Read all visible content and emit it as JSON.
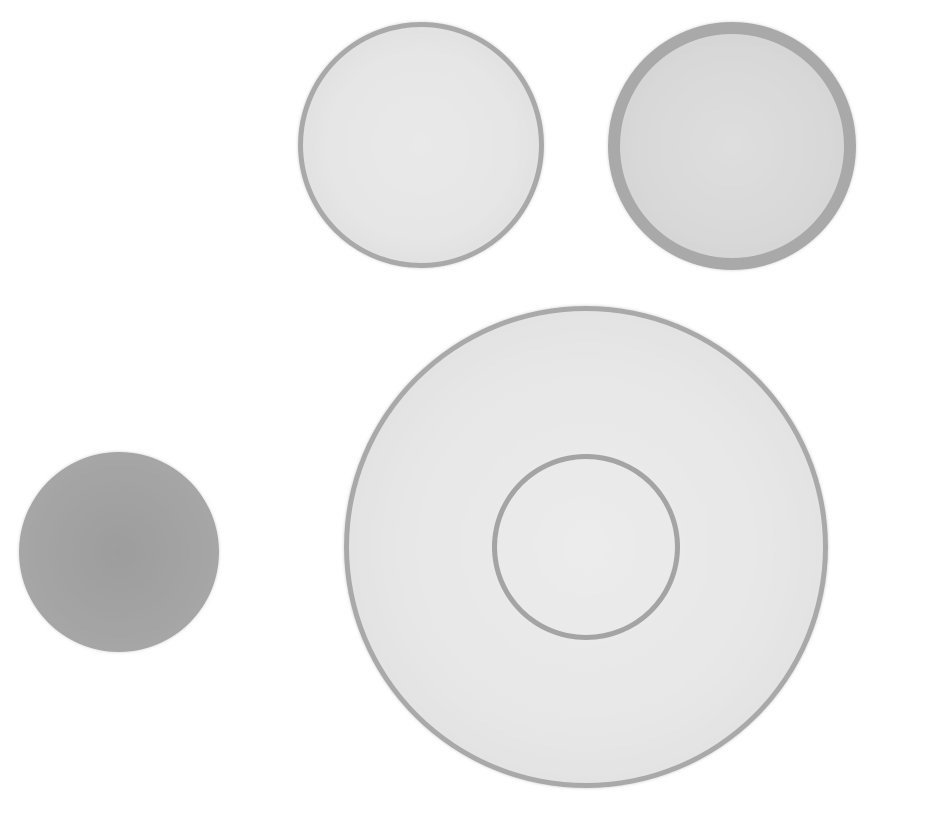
{
  "canvas": {
    "background": "#ffffff"
  },
  "shapes": [
    {
      "name": "circle-top-left",
      "kind": "ring",
      "fill": "#e7e7e7",
      "stroke": "#a9a9a9"
    },
    {
      "name": "circle-top-right",
      "kind": "thick-ring",
      "fill": "#d9d9d9",
      "stroke": "#a9a9a9"
    },
    {
      "name": "circle-left-filled",
      "kind": "filled-disc",
      "fill": "#a6a6a6"
    },
    {
      "name": "circle-large-outer",
      "kind": "ring",
      "fill": "#e7e7e7",
      "stroke": "#a9a9a9"
    },
    {
      "name": "circle-large-inner",
      "kind": "inner-ring",
      "stroke": "#a4a4a4"
    }
  ]
}
